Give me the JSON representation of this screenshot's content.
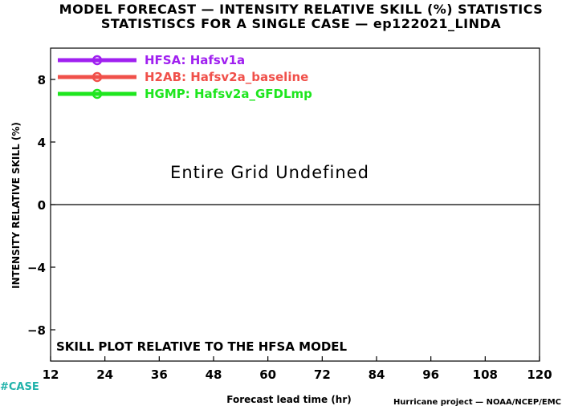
{
  "chart_data": {
    "type": "line",
    "title": "MODEL FORECAST — INTENSITY RELATIVE SKILL (%) STATISTICS",
    "subtitle": "STATISTISCS FOR A SINGLE CASE — ep122021_LINDA",
    "xlabel": "Forecast lead time (hr)",
    "ylabel": "INTENSITY RELATIVE SKILL (%)",
    "xlim": [
      12,
      120
    ],
    "ylim": [
      -10,
      10
    ],
    "x_ticks": [
      12,
      24,
      36,
      48,
      60,
      72,
      84,
      96,
      108,
      120
    ],
    "x_tick_labels": [
      "12",
      "24",
      "36",
      "48",
      "60",
      "72",
      "84",
      "96",
      "108",
      "120"
    ],
    "y_ticks": [
      -8,
      -4,
      0,
      4,
      8
    ],
    "y_tick_labels": [
      "−8",
      "−4",
      "0",
      "4",
      "8"
    ],
    "zero_line": 0,
    "legend_position": "top-left",
    "series": [
      {
        "name": "HFSA:  Hafsv1a",
        "color": "#a020f0",
        "values": []
      },
      {
        "name": "H2AB:  Hafsv2a_baseline",
        "color": "#f0504a",
        "values": []
      },
      {
        "name": "HGMP:  Hafsv2a_GFDLmp",
        "color": "#1ee61e",
        "values": []
      }
    ],
    "annotations": {
      "undefined": "Entire Grid Undefined",
      "skill_note": "SKILL PLOT RELATIVE TO THE HFSA MODEL",
      "case_label": "#CASE",
      "credit": "Hurricane project — NOAA/NCEP/EMC"
    }
  }
}
